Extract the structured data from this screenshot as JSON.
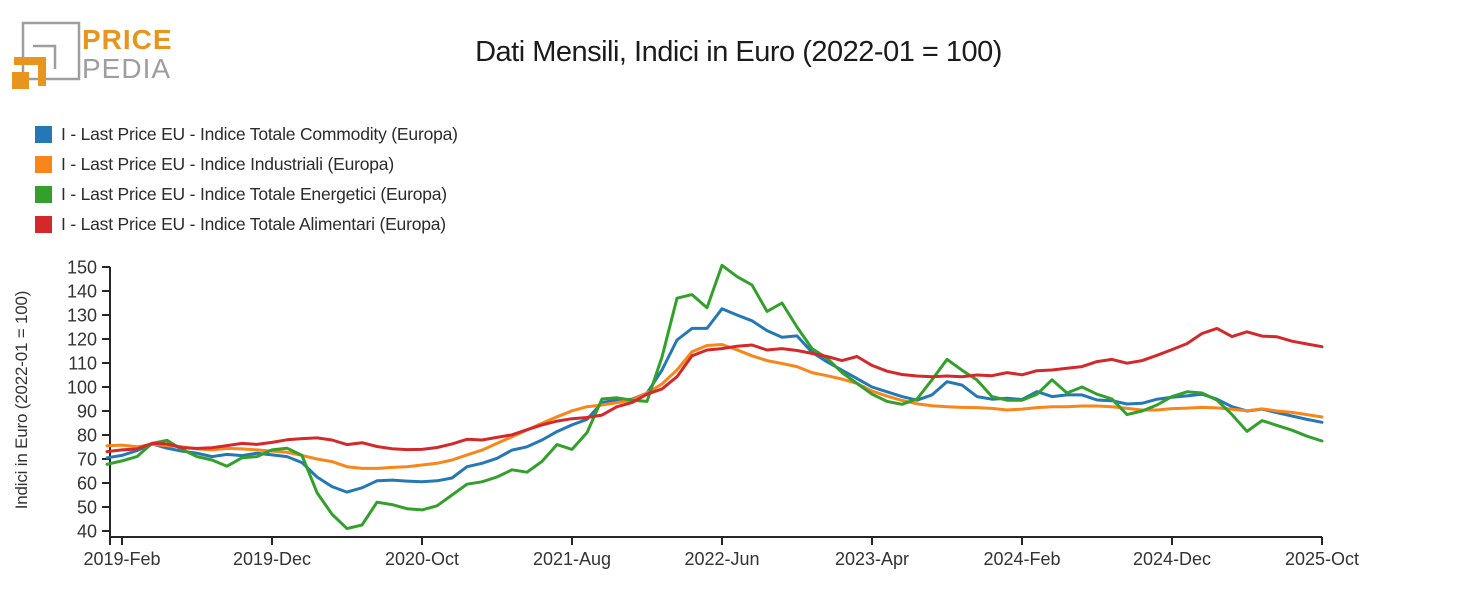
{
  "header": {
    "logo": {
      "brand_top": "PRICE",
      "brand_bottom": "PEDIA",
      "colors": {
        "orange": "#E8951D",
        "gray": "#9E9E9E"
      }
    },
    "title": "Dati Mensili, Indici in Euro (2022-01 = 100)"
  },
  "y_axis_title": "Indici in Euro (2022-01 = 100)",
  "chart_data": {
    "type": "line",
    "title": "Dati Mensili, Indici in Euro (2022-01 = 100)",
    "xlabel": "",
    "ylabel": "Indici in Euro (2022-01 = 100)",
    "x_unit": "month",
    "x_start": "2019-01",
    "x_end": "2025-10",
    "grid": false,
    "legend_position": "top-left",
    "ylim": [
      36,
      152
    ],
    "y_ticks": [
      40,
      50,
      60,
      70,
      80,
      90,
      100,
      110,
      120,
      130,
      140,
      150
    ],
    "x_ticks": [
      {
        "index": 1,
        "label": "2019-Feb"
      },
      {
        "index": 11,
        "label": "2019-Dec"
      },
      {
        "index": 21,
        "label": "2020-Oct"
      },
      {
        "index": 31,
        "label": "2021-Aug"
      },
      {
        "index": 41,
        "label": "2022-Jun"
      },
      {
        "index": 51,
        "label": "2023-Apr"
      },
      {
        "index": 61,
        "label": "2024-Feb"
      },
      {
        "index": 71,
        "label": "2024-Dec"
      },
      {
        "index": 81,
        "label": "2025-Oct"
      }
    ],
    "axis_color": "#262626",
    "series": [
      {
        "key": "commodity",
        "name": "I - Last Price EU - Indice Totale Commodity (Europa)",
        "color": "#2478B5",
        "values": [
          70.5,
          71.5,
          73.5,
          76.3,
          74.5,
          73.3,
          72.4,
          71,
          71.9,
          71.4,
          72.4,
          71.7,
          71,
          68.5,
          62.5,
          58.5,
          56.2,
          58,
          60.9,
          61.2,
          60.8,
          60.5,
          60.9,
          62.1,
          66.8,
          68.2,
          70.3,
          73.7,
          75.1,
          77.9,
          81.4,
          84.2,
          86.5,
          93.5,
          94.6,
          94.9,
          97.4,
          107.1,
          119.6,
          124.4,
          124.4,
          132.6,
          130,
          127.6,
          123.5,
          120.7,
          121.3,
          114.5,
          110.5,
          107,
          103.5,
          100,
          98,
          96,
          94.5,
          96.7,
          102.2,
          100.8,
          96,
          94.9,
          95.3,
          94.8,
          98.1,
          96,
          96.7,
          96.7,
          94.6,
          94.3,
          92.9,
          93.2,
          94.9,
          95.7,
          96.3,
          97,
          94.9,
          91.8,
          90,
          90.8,
          89.3,
          87.9,
          86.5,
          85.3
        ]
      },
      {
        "key": "industriali",
        "name": "I - Last Price EU - Indice Industriali (Europa)",
        "color": "#F8861B",
        "values": [
          75.5,
          75.8,
          75.1,
          76.1,
          75.6,
          75.1,
          74.2,
          73.8,
          74.4,
          74.2,
          73.8,
          73.3,
          72.8,
          71.5,
          70,
          68.9,
          66.8,
          66.1,
          66.1,
          66.5,
          66.8,
          67.5,
          68.2,
          69.6,
          71.7,
          73.7,
          76.5,
          79.3,
          82.1,
          84.9,
          87.6,
          90.1,
          91.8,
          92.5,
          93.5,
          94.6,
          97.4,
          101.3,
          107.1,
          114.7,
          117.3,
          117.7,
          115.5,
          113,
          111,
          109.8,
          108.5,
          106,
          104.7,
          103.3,
          101.5,
          98.3,
          96.2,
          94.4,
          93,
          92.2,
          91.8,
          91.5,
          91.4,
          91.1,
          90.4,
          90.8,
          91.4,
          91.8,
          91.8,
          92.1,
          92.1,
          91.8,
          91.1,
          90.4,
          90.4,
          91,
          91.2,
          91.5,
          91.3,
          90.7,
          90.1,
          90.9,
          90,
          89.4,
          88.5,
          87.5
        ]
      },
      {
        "key": "energetici",
        "name": "I - Last Price EU - Indice Totale Energetici (Europa)",
        "color": "#33A02C",
        "values": [
          67.8,
          69.2,
          71,
          76.5,
          77.8,
          74,
          71,
          69.6,
          67,
          70.5,
          71,
          73.8,
          74.5,
          71.5,
          56,
          47,
          41,
          42.5,
          52,
          51,
          49.3,
          48.8,
          50.5,
          55,
          59.5,
          60.5,
          62.5,
          65.5,
          64.5,
          69,
          76,
          74,
          81,
          95,
          95.5,
          94.5,
          94,
          112.5,
          137,
          138.5,
          133,
          150.7,
          146,
          142.5,
          131.5,
          135,
          125,
          116,
          112,
          106,
          101.5,
          97,
          94,
          92.8,
          95,
          103,
          111.5,
          107,
          102.9,
          96,
          94.5,
          94.5,
          97,
          103,
          97.5,
          100,
          97,
          95,
          88.5,
          90,
          92.5,
          96,
          98,
          97.5,
          94.5,
          88.5,
          81.5,
          86,
          84,
          82,
          79.5,
          77.5
        ]
      },
      {
        "key": "alimentari",
        "name": "I - Last Price EU - Indice Totale Alimentari (Europa)",
        "color": "#D4292B",
        "values": [
          73.1,
          73.8,
          74.2,
          76.5,
          76.3,
          74.7,
          74.4,
          74.7,
          75.6,
          76.5,
          76.1,
          76.9,
          78,
          78.5,
          78.8,
          77.9,
          76,
          76.8,
          75.2,
          74.3,
          73.9,
          74,
          74.8,
          76.3,
          78.2,
          77.9,
          79,
          80.1,
          82.2,
          84.2,
          85.8,
          86.8,
          87.3,
          88.3,
          91.8,
          93.5,
          97,
          99.2,
          104.3,
          113,
          115.4,
          116,
          117,
          117.5,
          115.4,
          116,
          115.2,
          114,
          112.7,
          111,
          112.7,
          109,
          106.6,
          105.2,
          104.6,
          104.3,
          104.6,
          104.3,
          105,
          104.7,
          106,
          105.1,
          106.8,
          107.1,
          107.8,
          108.5,
          110.6,
          111.5,
          109.9,
          111,
          113.2,
          115.6,
          118.1,
          122.3,
          124.4,
          121,
          123,
          121.2,
          120.9,
          119.1,
          117.9,
          116.8
        ]
      }
    ]
  }
}
